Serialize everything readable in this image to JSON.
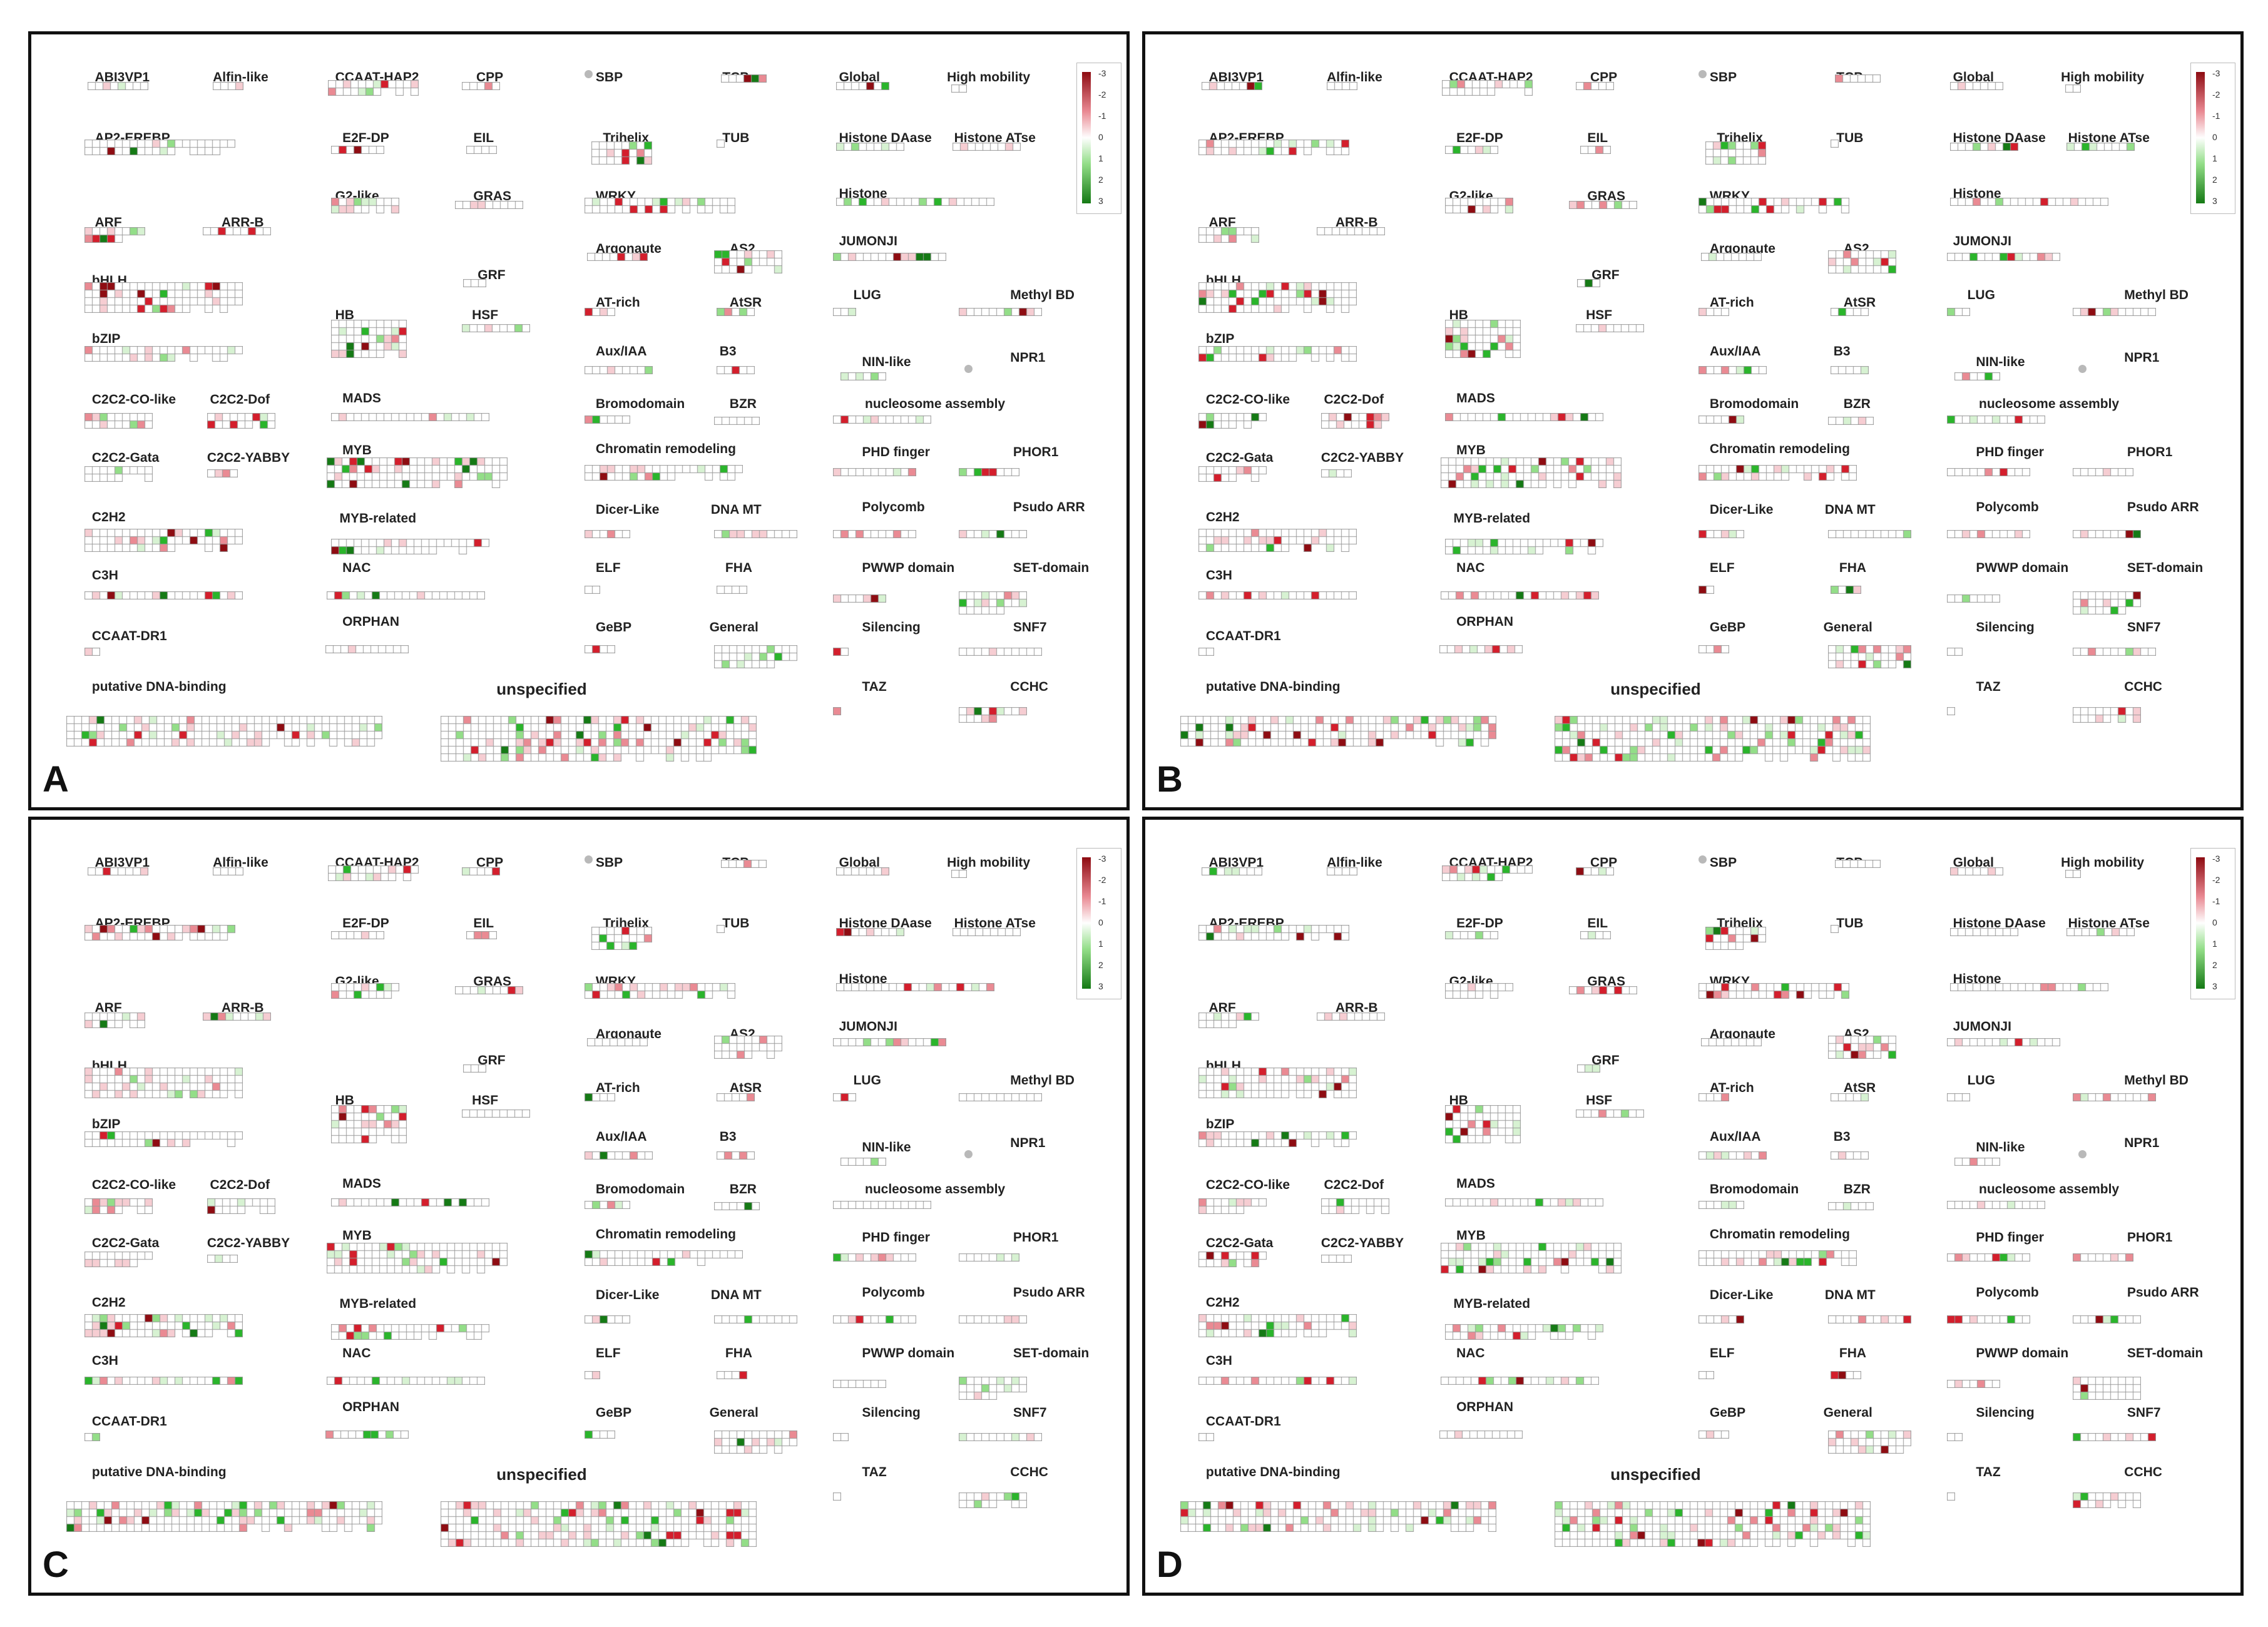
{
  "colors": {
    "upregulated": [
      "#f6cdd2",
      "#ea8a93",
      "#d41e2c",
      "#8e0c12"
    ],
    "downregulated": [
      "#d7f2d2",
      "#93de88",
      "#2ab52b",
      "#157a15"
    ],
    "unchanged": "#ffffff",
    "cell_border": "#9a9a9a",
    "panel_border": "#111111"
  },
  "legend": {
    "ticks": [
      "-3",
      "-2",
      "-1",
      "0",
      "1",
      "2",
      "3"
    ]
  },
  "panels": [
    {
      "label": "A"
    },
    {
      "label": "B"
    },
    {
      "label": "C"
    },
    {
      "label": "D"
    }
  ],
  "categories": [
    "ABI3VP1",
    "Alfin-like",
    "CCAAT-HAP2",
    "CPP",
    "SBP",
    "TCP",
    "Global",
    "High mobility",
    "AP2-EREBP",
    "E2F-DP",
    "EIL",
    "Trihelix",
    "TUB",
    "Histone DAase",
    "Histone ATse",
    "ARF",
    "ARR-B",
    "G2-like",
    "GRAS",
    "WRKY",
    "Histone",
    "bHLH",
    "GRF",
    "Argonaute",
    "AS2",
    "JUMONJI",
    "bZIP",
    "HB",
    "HSF",
    "AT-rich",
    "AtSR",
    "LUG",
    "Methyl BD",
    "C2C2-CO-like",
    "C2C2-Dof",
    "MADS",
    "Aux/IAA",
    "B3",
    "NIN-like",
    "NPR1",
    "C2C2-Gata",
    "C2C2-YABBY",
    "MYB",
    "Bromodomain",
    "BZR",
    "nucleosome assembly",
    "Chromatin remodeling",
    "PHD finger",
    "PHOR1",
    "C2H2",
    "MYB-related",
    "Dicer-Like",
    "DNA MT",
    "Polycomb",
    "Psudo ARR",
    "C3H",
    "NAC",
    "ELF",
    "FHA",
    "PWWP domain",
    "SET-domain",
    "CCAAT-DR1",
    "ORPHAN",
    "GeBP",
    "General",
    "Silencing",
    "SNF7",
    "putative DNA-binding",
    "unspecified",
    "TAZ",
    "CCHC"
  ],
  "icons": [
    "grey-dot-icon"
  ]
}
